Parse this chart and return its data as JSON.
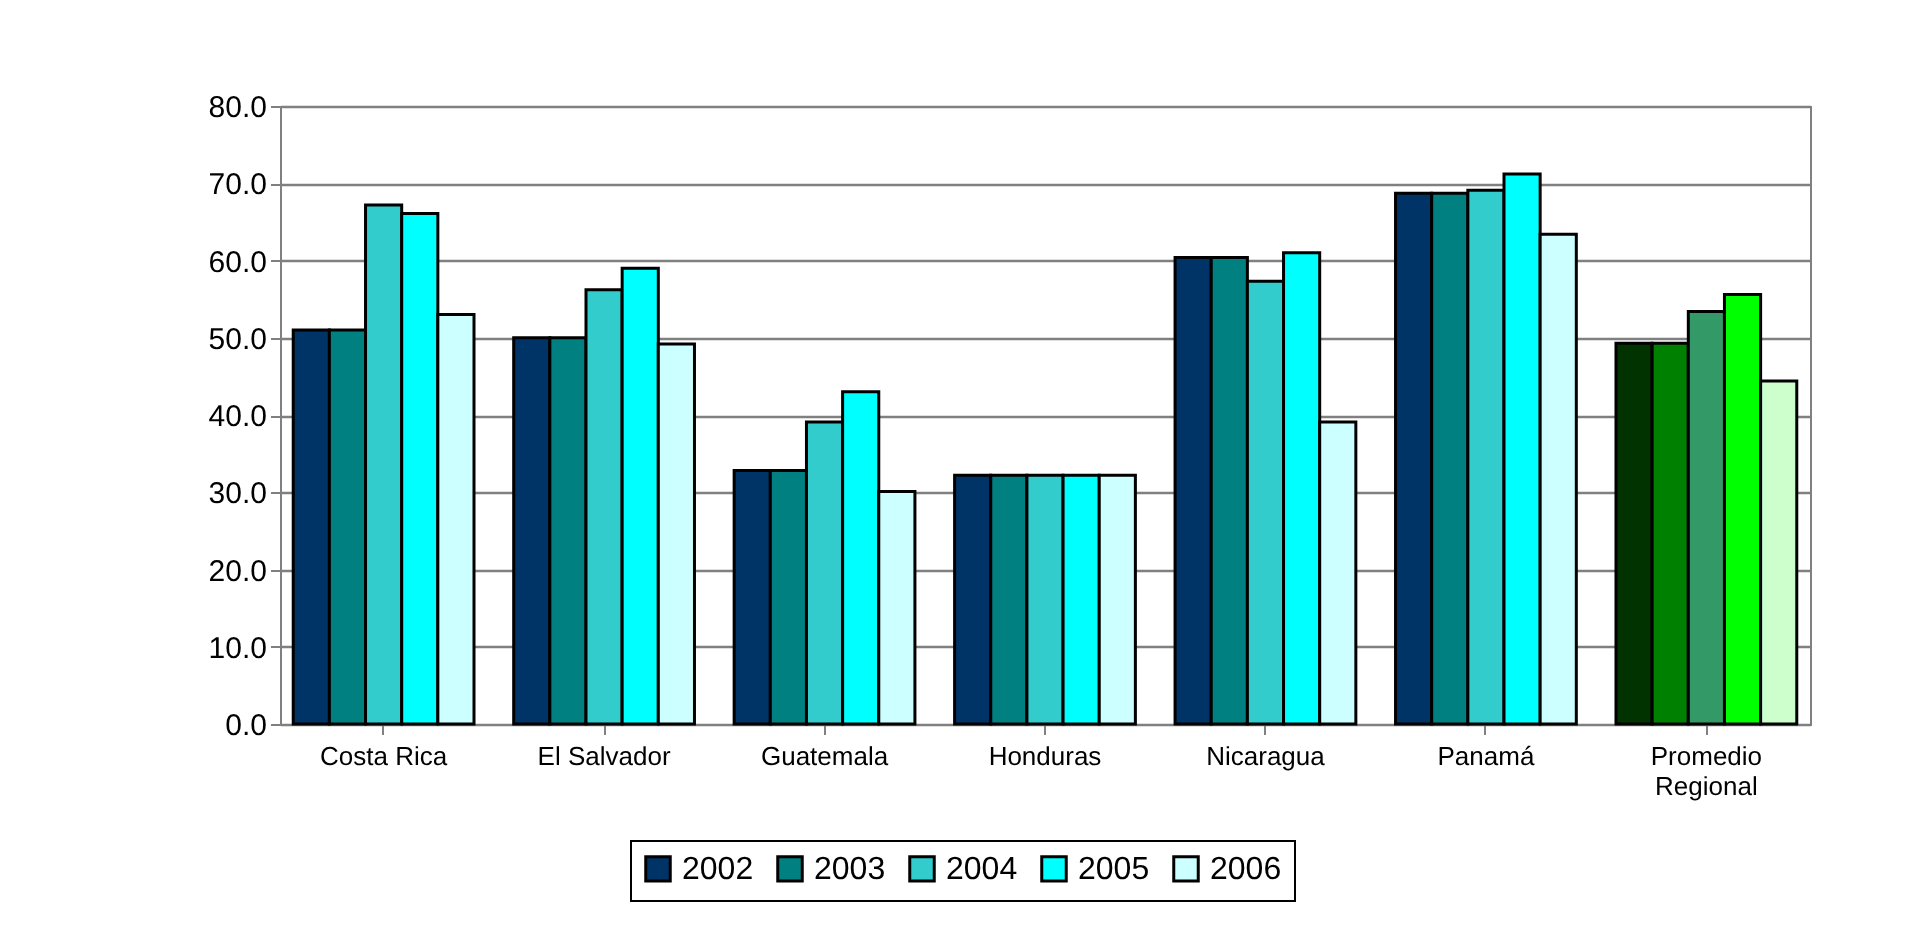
{
  "chart_data": {
    "type": "bar",
    "categories": [
      "Costa Rica",
      "El Salvador",
      "Guatemala",
      "Honduras",
      "Nicaragua",
      "Panamá",
      "Promedio Regional"
    ],
    "series": [
      {
        "name": "2002",
        "color": "#003366",
        "values": [
          51,
          50,
          32.8,
          32.2,
          60.4,
          68.7,
          49.3
        ],
        "colors": [
          "#003366",
          "#003366",
          "#003366",
          "#003366",
          "#003366",
          "#003366",
          "#003300"
        ]
      },
      {
        "name": "2003",
        "color": "#008080",
        "values": [
          51,
          50,
          32.8,
          32.2,
          60.4,
          68.7,
          49.3
        ],
        "colors": [
          "#008080",
          "#008080",
          "#008080",
          "#008080",
          "#008080",
          "#008080",
          "#008000"
        ]
      },
      {
        "name": "2004",
        "color": "#33cccc",
        "values": [
          67.2,
          56.2,
          39.1,
          32.2,
          57.3,
          69.1,
          53.4
        ],
        "colors": [
          "#33cccc",
          "#33cccc",
          "#33cccc",
          "#33cccc",
          "#33cccc",
          "#33cccc",
          "#339966"
        ]
      },
      {
        "name": "2005",
        "color": "#00ffff",
        "values": [
          66.1,
          59,
          43,
          32.2,
          61,
          71.2,
          55.6
        ],
        "colors": [
          "#00ffff",
          "#00ffff",
          "#00ffff",
          "#00ffff",
          "#00ffff",
          "#00ffff",
          "#00ff00"
        ]
      },
      {
        "name": "2006",
        "color": "#ccffff",
        "values": [
          53,
          49.2,
          30.1,
          32.2,
          39.1,
          63.4,
          44.4
        ],
        "colors": [
          "#ccffff",
          "#ccffff",
          "#ccffff",
          "#ccffff",
          "#ccffff",
          "#ccffff",
          "#ccffcc"
        ]
      }
    ],
    "ylim": [
      0,
      80
    ],
    "yticks": [
      {
        "value": 0,
        "label": "0.0"
      },
      {
        "value": 10,
        "label": "10.0"
      },
      {
        "value": 20,
        "label": "20.0"
      },
      {
        "value": 30,
        "label": "30.0"
      },
      {
        "value": 40,
        "label": "40.0"
      },
      {
        "value": 50,
        "label": "50.0"
      },
      {
        "value": 60,
        "label": "60.0"
      },
      {
        "value": 70,
        "label": "70.0"
      },
      {
        "value": 80,
        "label": "80.0"
      }
    ],
    "grid": "y",
    "legend": "bottom"
  }
}
